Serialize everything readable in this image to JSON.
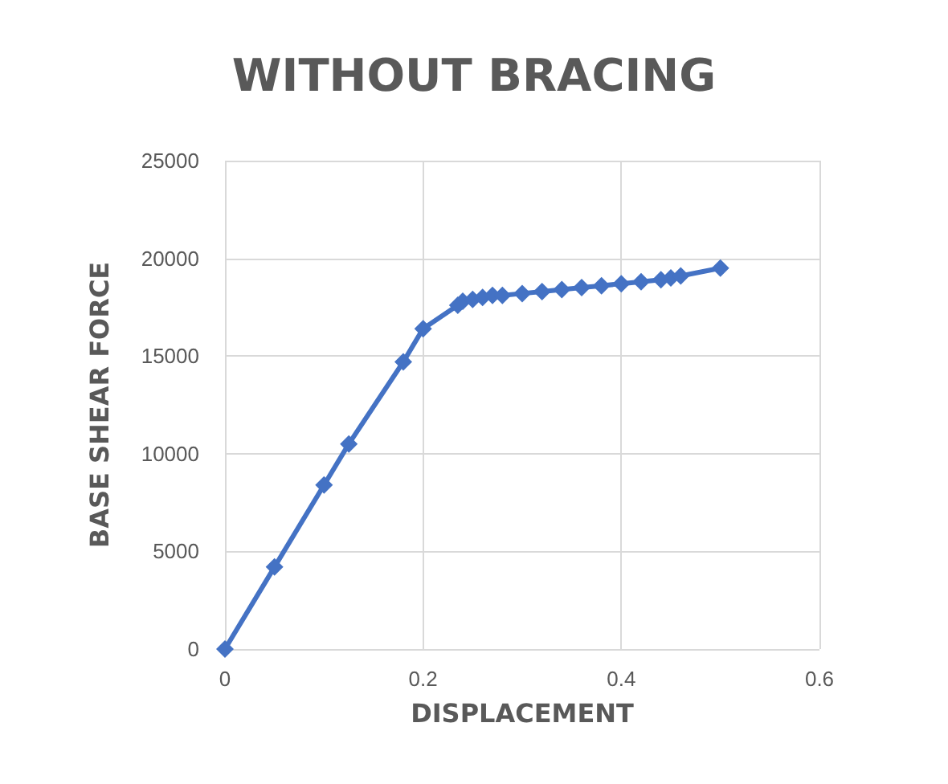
{
  "chart_data": {
    "type": "line",
    "title": "WITHOUT BRACING",
    "xlabel": "DISPLACEMENT",
    "ylabel": "BASE SHEAR FORCE",
    "series": [
      {
        "color": "#4472c4",
        "x": [
          0,
          0.05,
          0.1,
          0.125,
          0.18,
          0.2,
          0.235,
          0.24,
          0.25,
          0.26,
          0.27,
          0.28,
          0.3,
          0.32,
          0.34,
          0.36,
          0.38,
          0.4,
          0.42,
          0.44,
          0.45,
          0.46,
          0.5
        ],
        "values": [
          0,
          4200,
          8400,
          10500,
          14700,
          16400,
          17600,
          17800,
          17900,
          18000,
          18100,
          18100,
          18200,
          18300,
          18400,
          18500,
          18600,
          18700,
          18800,
          18900,
          19000,
          19100,
          19500
        ]
      }
    ],
    "xlim": [
      0,
      0.6
    ],
    "xticks": [
      0,
      0.2,
      0.4,
      0.6
    ],
    "ylim": [
      0,
      25000
    ],
    "yticks": [
      0,
      5000,
      10000,
      15000,
      20000,
      25000
    ],
    "grid": true,
    "marker": "diamond",
    "line_style": "solid"
  }
}
